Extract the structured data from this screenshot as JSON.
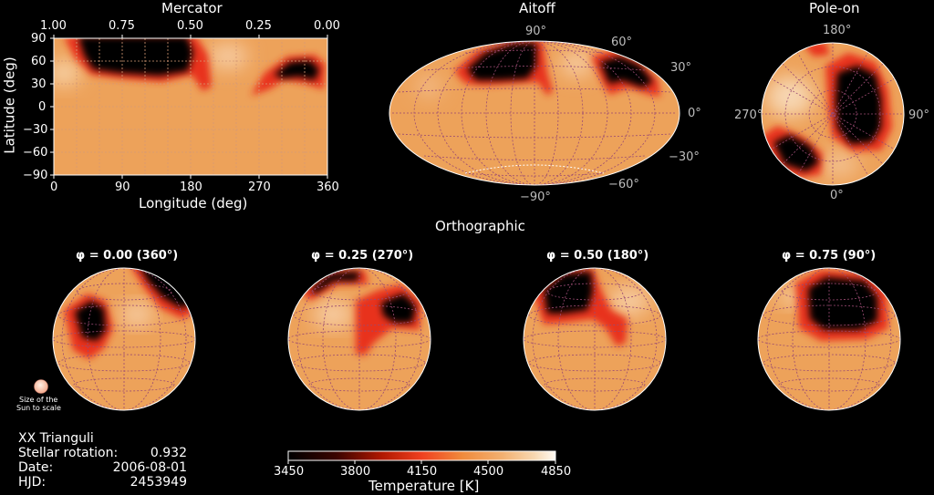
{
  "mercator": {
    "title": "Mercator",
    "top_ticks": [
      "1.00",
      "0.75",
      "0.50",
      "0.25",
      "0.00"
    ],
    "y_ticks": [
      "90",
      "60",
      "30",
      "0",
      "−30",
      "−60",
      "−90"
    ],
    "x_ticks": [
      "0",
      "90",
      "180",
      "270",
      "360"
    ],
    "xlabel": "Longitude (deg)",
    "ylabel": "Latitude (deg)"
  },
  "aitoff": {
    "title": "Aitoff",
    "ticks": [
      "90°",
      "60°",
      "30°",
      "0°",
      "−30°",
      "−60°",
      "−90°"
    ]
  },
  "poleon": {
    "title": "Pole-on",
    "ticks": [
      "180°",
      "270°",
      "90°",
      "0°"
    ]
  },
  "ortho": {
    "title": "Orthographic",
    "phases": [
      "φ = 0.00 (360°)",
      "φ = 0.25 (270°)",
      "φ = 0.50 (180°)",
      "φ =  0.75 (90°)"
    ],
    "sun_label": [
      "Size of the",
      "Sun to scale"
    ]
  },
  "info": {
    "star": "XX Trianguli",
    "rows": [
      {
        "label": "Stellar rotation:",
        "value": "0.932"
      },
      {
        "label": "Date:",
        "value": "2006-08-01"
      },
      {
        "label": "HJD:",
        "value": "2453949"
      }
    ]
  },
  "colorbar": {
    "ticks": [
      "3450",
      "3800",
      "4150",
      "4500",
      "4850"
    ],
    "label": "Temperature [K]",
    "range": [
      3450,
      4850
    ]
  },
  "colors": {
    "surface": "#eda25a",
    "spot_core": "#000000",
    "spot_edge": "#e8301a",
    "grid": "#9a4a72"
  }
}
